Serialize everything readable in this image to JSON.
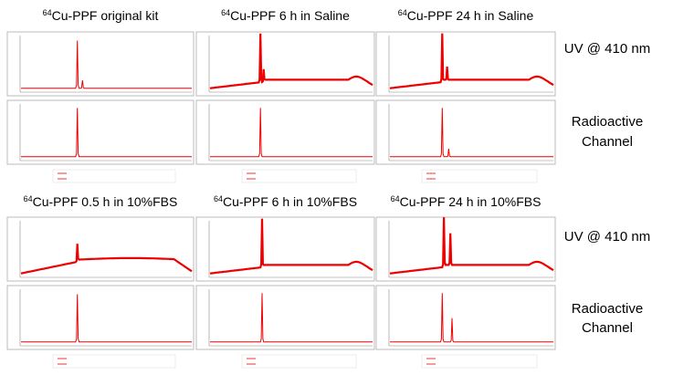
{
  "groups": [
    {
      "panels": [
        {
          "isotope": "64",
          "title": "Cu-PPF original kit"
        },
        {
          "isotope": "64",
          "title": "Cu-PPF 6 h in Saline"
        },
        {
          "isotope": "64",
          "title": "Cu-PPF 24 h in Saline"
        }
      ]
    },
    {
      "panels": [
        {
          "isotope": "64",
          "title": "Cu-PPF 0.5 h in 10%FBS"
        },
        {
          "isotope": "64",
          "title": "Cu-PPF 6 h in 10%FBS"
        },
        {
          "isotope": "64",
          "title": "Cu-PPF 24 h in 10%FBS"
        }
      ]
    }
  ],
  "row_labels": {
    "uv": "UV @ 410 nm",
    "radio": [
      "Radioactive",
      "Channel"
    ]
  }
}
